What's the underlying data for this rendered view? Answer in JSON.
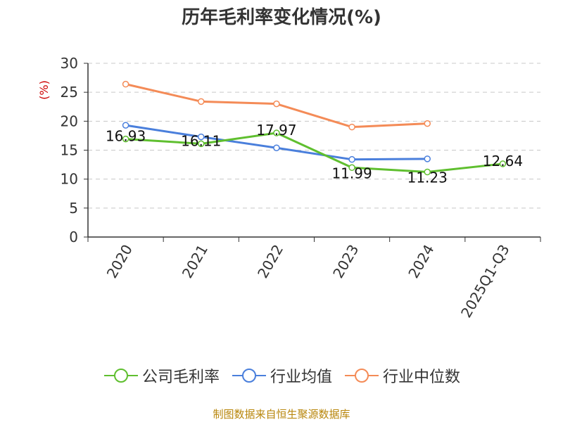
{
  "chart_data": {
    "type": "line",
    "title": "历年毛利率变化情况(%)",
    "ylabel": "(%)",
    "xlabel": "",
    "categories": [
      "2020",
      "2021",
      "2022",
      "2023",
      "2024",
      "2025Q1-Q3"
    ],
    "ylim": [
      0,
      30
    ],
    "yticks": [
      0,
      5,
      10,
      15,
      20,
      25,
      30
    ],
    "grid": true,
    "legend_position": "bottom",
    "series": [
      {
        "name": "公司毛利率",
        "color": "#5fbf2f",
        "values": [
          16.93,
          16.11,
          17.97,
          11.99,
          11.23,
          12.64
        ],
        "labels": [
          "16.93",
          "16.11",
          "17.97",
          "11.99",
          "11.23",
          "12.64"
        ]
      },
      {
        "name": "行业均值",
        "color": "#4a7fdc",
        "values": [
          19.3,
          17.3,
          15.4,
          13.4,
          13.5,
          null
        ]
      },
      {
        "name": "行业中位数",
        "color": "#f48b57",
        "values": [
          26.4,
          23.4,
          23.0,
          19.0,
          19.6,
          null
        ]
      }
    ]
  },
  "source": "制图数据来自恒生聚源数据库"
}
